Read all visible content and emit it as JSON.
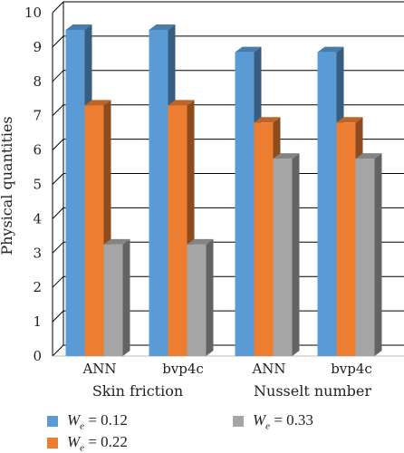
{
  "chart_data": {
    "type": "bar",
    "categories": [
      "ANN",
      "bvp4c",
      "ANN",
      "bvp4c"
    ],
    "groups": [
      "Skin friction",
      "Nusselt number"
    ],
    "ylabel": "Physical quantities",
    "ylim": [
      0,
      10
    ],
    "yticks": [
      0,
      1,
      2,
      3,
      4,
      5,
      6,
      7,
      8,
      9,
      10
    ],
    "grid": true,
    "legend_position": "bottom",
    "series": [
      {
        "name": "W_e = 0.12",
        "symbol": "W",
        "sub": "e",
        "suffix": " = 0.12",
        "color": "#5b9bd5",
        "values": [
          9.5,
          9.5,
          8.85,
          8.85
        ]
      },
      {
        "name": "W_e = 0.22",
        "symbol": "W",
        "sub": "e",
        "suffix": " = 0.22",
        "color": "#ed7d31",
        "values": [
          7.3,
          7.3,
          6.8,
          6.8
        ]
      },
      {
        "name": "W_e = 0.33",
        "symbol": "W",
        "sub": "e",
        "suffix": " = 0.33",
        "color": "#a5a5a5",
        "values": [
          3.25,
          3.25,
          5.75,
          5.75
        ]
      }
    ]
  }
}
